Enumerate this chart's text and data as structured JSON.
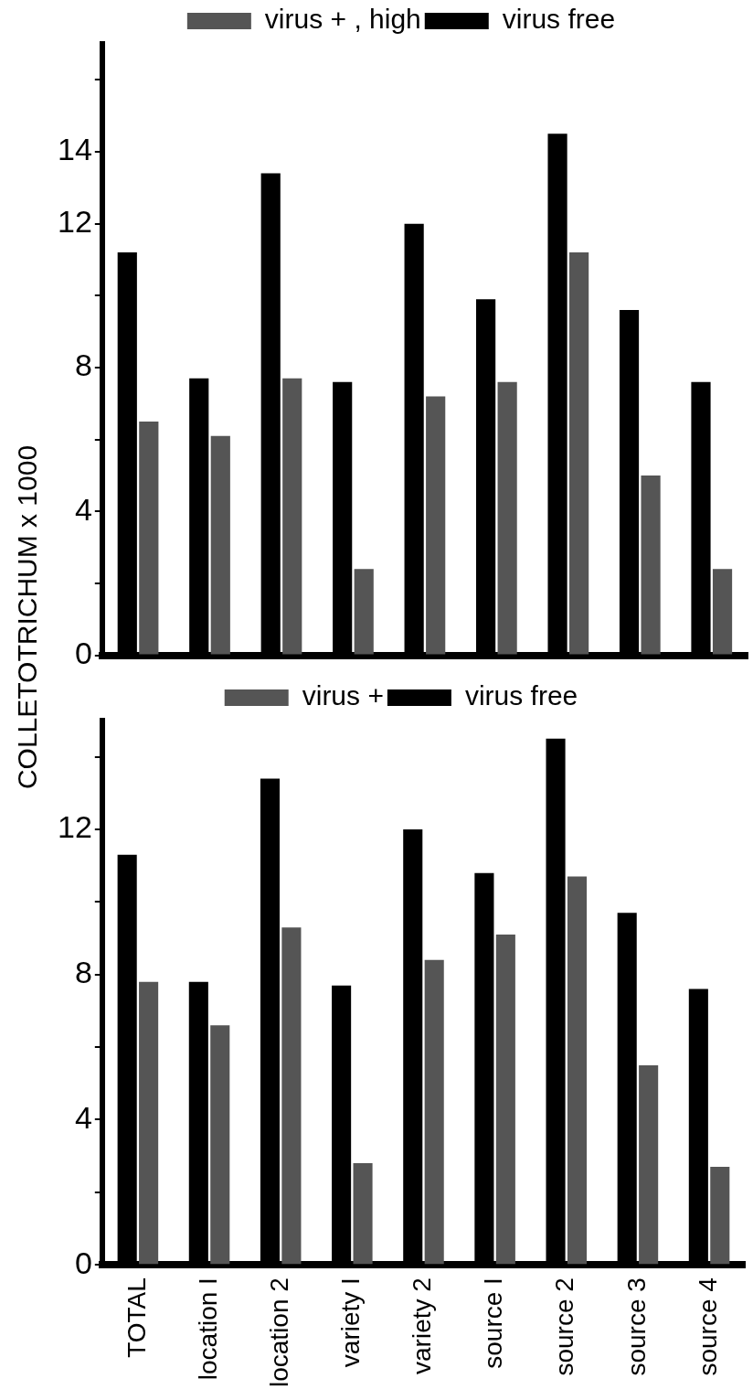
{
  "chart_data": [
    {
      "type": "bar",
      "ylabel": "COLLETOTRICHUM x 1000",
      "categories": [
        null,
        null,
        null,
        null,
        null,
        null,
        null,
        null,
        null
      ],
      "series": [
        {
          "name": "virus free",
          "color": "#000000",
          "values": [
            11.2,
            7.7,
            13.4,
            7.6,
            12.0,
            9.9,
            14.5,
            9.6,
            7.6
          ]
        },
        {
          "name": "virus + , high",
          "color": "#555555",
          "values": [
            6.5,
            6.1,
            7.7,
            2.4,
            7.2,
            7.6,
            11.2,
            5.0,
            2.4
          ]
        }
      ],
      "ylim": [
        0,
        17
      ],
      "yticks": [
        0,
        {
          "value": 2,
          "label": null
        },
        4,
        {
          "value": 6,
          "label": null
        },
        8,
        {
          "value": 10,
          "label": null
        },
        12,
        14,
        {
          "value": 16,
          "label": null
        }
      ],
      "tick_labels": "y",
      "legend": "top",
      "grid": false
    },
    {
      "type": "bar",
      "categories": [
        "TOTAL",
        "location I",
        "location 2",
        "variety I",
        "variety 2",
        "source I",
        "source 2",
        "source 3",
        "source 4"
      ],
      "series": [
        {
          "name": "virus free",
          "color": "#000000",
          "values": [
            11.3,
            7.8,
            13.4,
            7.7,
            12.0,
            10.8,
            14.5,
            9.7,
            7.6
          ]
        },
        {
          "name": "virus +",
          "color": "#555555",
          "values": [
            7.8,
            6.6,
            9.3,
            2.8,
            8.4,
            9.1,
            10.7,
            5.5,
            2.7
          ]
        }
      ],
      "ylim": [
        0,
        15
      ],
      "yticks": [
        0,
        {
          "value": 2,
          "label": null
        },
        4,
        {
          "value": 6,
          "label": null
        },
        8,
        {
          "value": 10,
          "label": null
        },
        12,
        {
          "value": 14,
          "label": null
        }
      ],
      "legend": "top",
      "grid": false
    }
  ]
}
